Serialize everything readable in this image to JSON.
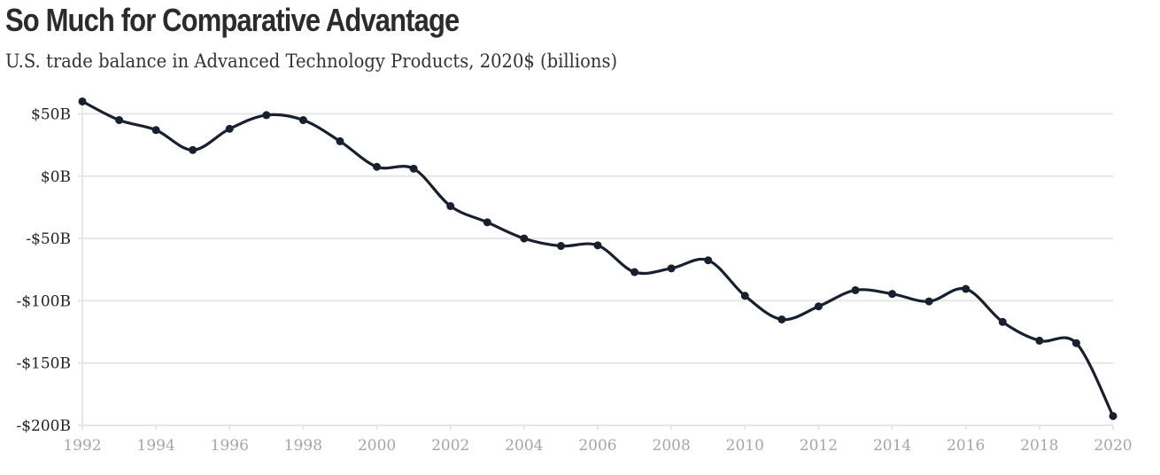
{
  "colors": {
    "line": "#18202f",
    "grid": "#e6e6e6",
    "title": "#2b2b2b",
    "y_tick_text": "#222222",
    "x_tick_text": "#a6a6a6"
  },
  "chart_data": {
    "type": "line",
    "title": "So Much for Comparative Advantage",
    "subtitle": "U.S. trade balance in Advanced Technology Products, 2020$ (billions)",
    "xlabel": "",
    "ylabel": "",
    "x": [
      1992,
      1993,
      1994,
      1995,
      1996,
      1997,
      1998,
      1999,
      2000,
      2001,
      2002,
      2003,
      2004,
      2005,
      2006,
      2007,
      2008,
      2009,
      2010,
      2011,
      2012,
      2013,
      2014,
      2015,
      2016,
      2017,
      2018,
      2019,
      2020
    ],
    "series": [
      {
        "name": "Trade balance in Advanced Technology Products (2020$, billions)",
        "values": [
          60,
          45,
          37,
          21,
          38,
          49,
          45,
          28,
          7.5,
          6,
          -24,
          -37,
          -50,
          -56,
          -55.5,
          -77,
          -74,
          -67.5,
          -96,
          -115,
          -104.5,
          -91.5,
          -94.5,
          -100.5,
          -90.5,
          -117,
          -132,
          -134,
          -192.5
        ]
      }
    ],
    "xlim": [
      1992,
      2020
    ],
    "ylim": [
      -200,
      60
    ],
    "x_ticks": [
      1992,
      1994,
      1996,
      1998,
      2000,
      2002,
      2004,
      2006,
      2008,
      2010,
      2012,
      2014,
      2016,
      2018,
      2020
    ],
    "x_tick_labels": [
      "1992",
      "1994",
      "1996",
      "1998",
      "2000",
      "2002",
      "2004",
      "2006",
      "2008",
      "2010",
      "2012",
      "2014",
      "2016",
      "2018",
      "2020"
    ],
    "y_ticks": [
      50,
      0,
      -50,
      -100,
      -150,
      -200
    ],
    "y_tick_labels": [
      "$50B",
      "$0B",
      "-$50B",
      "-$100B",
      "-$150B",
      "-$200B"
    ],
    "grid": "horizontal",
    "markers": true,
    "legend": "none"
  }
}
